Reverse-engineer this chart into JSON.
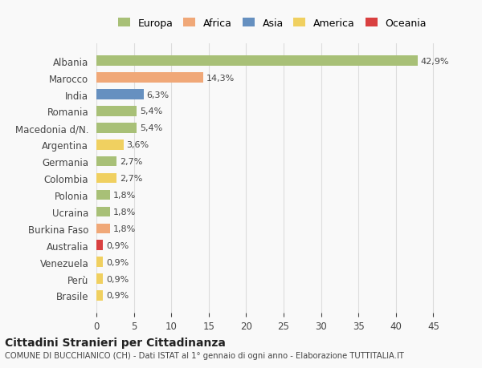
{
  "countries": [
    "Albania",
    "Marocco",
    "India",
    "Romania",
    "Macedonia d/N.",
    "Argentina",
    "Germania",
    "Colombia",
    "Polonia",
    "Ucraina",
    "Burkina Faso",
    "Australia",
    "Venezuela",
    "Perù",
    "Brasile"
  ],
  "values": [
    42.9,
    14.3,
    6.3,
    5.4,
    5.4,
    3.6,
    2.7,
    2.7,
    1.8,
    1.8,
    1.8,
    0.9,
    0.9,
    0.9,
    0.9
  ],
  "labels": [
    "42,9%",
    "14,3%",
    "6,3%",
    "5,4%",
    "5,4%",
    "3,6%",
    "2,7%",
    "2,7%",
    "1,8%",
    "1,8%",
    "1,8%",
    "0,9%",
    "0,9%",
    "0,9%",
    "0,9%"
  ],
  "colors": [
    "#a8c077",
    "#f0a878",
    "#6690c0",
    "#a8c077",
    "#a8c077",
    "#f0d060",
    "#a8c077",
    "#f0d060",
    "#a8c077",
    "#a8c077",
    "#f0a878",
    "#d94040",
    "#f0d060",
    "#f0d060",
    "#f0d060"
  ],
  "legend_labels": [
    "Europa",
    "Africa",
    "Asia",
    "America",
    "Oceania"
  ],
  "legend_colors": [
    "#a8c077",
    "#f0a878",
    "#6690c0",
    "#f0d060",
    "#d94040"
  ],
  "title": "Cittadini Stranieri per Cittadinanza",
  "subtitle": "COMUNE DI BUCCHIANICO (CH) - Dati ISTAT al 1° gennaio di ogni anno - Elaborazione TUTTITALIA.IT",
  "xlim": [
    0,
    47
  ],
  "xticks": [
    0,
    5,
    10,
    15,
    20,
    25,
    30,
    35,
    40,
    45
  ],
  "background_color": "#f9f9f9",
  "grid_color": "#dddddd"
}
